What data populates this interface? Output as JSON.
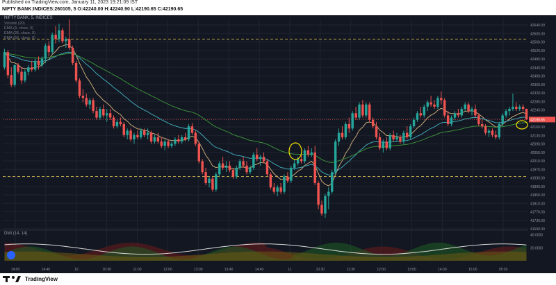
{
  "header": {
    "published": "Published on TradingView.com, January 11, 2023 19:21:09 IST",
    "symbol_line": "NIFTY BANK:INDICES:260105, 5 O:42240.00 H:42240.90 L:42190.65 C:42190.65"
  },
  "footer": {
    "brand": "TradingView"
  },
  "chart_data": [
    {
      "type": "candlestick",
      "title": "NIFTY BANK, 5, INDICES",
      "indicators": [
        "Volume (20)",
        "EMA (9, close, 0)",
        "EMA (26, close, 0)",
        "EMA (50, close, 0)"
      ],
      "y_axis_labels": [
        "42640.00",
        "42600.00",
        "42560.00",
        "42520.00",
        "42480.00",
        "42440.00",
        "42400.00",
        "42360.00",
        "42320.00",
        "42280.00",
        "42240.00",
        "42200.00",
        "42160.00",
        "42130.00",
        "42090.00",
        "42050.00",
        "42010.00",
        "41970.00",
        "41930.00",
        "41890.00",
        "41850.00",
        "41810.00",
        "41770.00",
        "41730.00",
        "41690.00"
      ],
      "ylim": [
        41690,
        42650
      ],
      "last_price": "42190.65",
      "x_axis_labels": [
        "14:00",
        "14:40",
        "10",
        "10:30",
        "11:00",
        "12:00",
        "13:00",
        "13:40",
        "14:40",
        "11",
        "10:30",
        "11:30",
        "12:00",
        "13:00",
        "14:00",
        "15:00",
        "05:30"
      ],
      "reference_levels": [
        42560,
        41930
      ],
      "candles": [
        {
          "o": 42430,
          "h": 42515,
          "l": 42420,
          "c": 42500
        },
        {
          "o": 42500,
          "h": 42510,
          "l": 42380,
          "c": 42395
        },
        {
          "o": 42395,
          "h": 42430,
          "l": 42340,
          "c": 42350
        },
        {
          "o": 42350,
          "h": 42445,
          "l": 42340,
          "c": 42440
        },
        {
          "o": 42440,
          "h": 42450,
          "l": 42400,
          "c": 42410
        },
        {
          "o": 42410,
          "h": 42430,
          "l": 42355,
          "c": 42370
        },
        {
          "o": 42370,
          "h": 42420,
          "l": 42360,
          "c": 42410
        },
        {
          "o": 42410,
          "h": 42440,
          "l": 42395,
          "c": 42430
        },
        {
          "o": 42430,
          "h": 42460,
          "l": 42410,
          "c": 42420
        },
        {
          "o": 42420,
          "h": 42470,
          "l": 42410,
          "c": 42460
        },
        {
          "o": 42460,
          "h": 42480,
          "l": 42420,
          "c": 42440
        },
        {
          "o": 42440,
          "h": 42480,
          "l": 42430,
          "c": 42470
        },
        {
          "o": 42470,
          "h": 42540,
          "l": 42450,
          "c": 42530
        },
        {
          "o": 42530,
          "h": 42550,
          "l": 42480,
          "c": 42500
        },
        {
          "o": 42500,
          "h": 42590,
          "l": 42490,
          "c": 42580
        },
        {
          "o": 42580,
          "h": 42620,
          "l": 42540,
          "c": 42560
        },
        {
          "o": 42560,
          "h": 42630,
          "l": 42545,
          "c": 42600
        },
        {
          "o": 42600,
          "h": 42610,
          "l": 42540,
          "c": 42550
        },
        {
          "o": 42550,
          "h": 42570,
          "l": 42520,
          "c": 42560
        },
        {
          "o": 42560,
          "h": 42650,
          "l": 42510,
          "c": 42520
        },
        {
          "o": 42520,
          "h": 42530,
          "l": 42440,
          "c": 42450
        },
        {
          "o": 42450,
          "h": 42460,
          "l": 42360,
          "c": 42370
        },
        {
          "o": 42370,
          "h": 42380,
          "l": 42290,
          "c": 42300
        },
        {
          "o": 42300,
          "h": 42330,
          "l": 42270,
          "c": 42290
        },
        {
          "o": 42290,
          "h": 42310,
          "l": 42250,
          "c": 42260
        },
        {
          "o": 42260,
          "h": 42290,
          "l": 42240,
          "c": 42280
        },
        {
          "o": 42280,
          "h": 42290,
          "l": 42220,
          "c": 42230
        },
        {
          "o": 42230,
          "h": 42250,
          "l": 42190,
          "c": 42200
        },
        {
          "o": 42200,
          "h": 42250,
          "l": 42190,
          "c": 42240
        },
        {
          "o": 42240,
          "h": 42260,
          "l": 42200,
          "c": 42210
        },
        {
          "o": 42210,
          "h": 42240,
          "l": 42180,
          "c": 42220
        },
        {
          "o": 42220,
          "h": 42240,
          "l": 42190,
          "c": 42200
        },
        {
          "o": 42200,
          "h": 42210,
          "l": 42150,
          "c": 42160
        },
        {
          "o": 42160,
          "h": 42190,
          "l": 42150,
          "c": 42180
        },
        {
          "o": 42180,
          "h": 42200,
          "l": 42160,
          "c": 42170
        },
        {
          "o": 42170,
          "h": 42180,
          "l": 42110,
          "c": 42120
        },
        {
          "o": 42120,
          "h": 42150,
          "l": 42100,
          "c": 42140
        },
        {
          "o": 42140,
          "h": 42150,
          "l": 42090,
          "c": 42100
        },
        {
          "o": 42100,
          "h": 42130,
          "l": 42080,
          "c": 42120
        },
        {
          "o": 42120,
          "h": 42140,
          "l": 42100,
          "c": 42110
        },
        {
          "o": 42110,
          "h": 42150,
          "l": 42100,
          "c": 42140
        },
        {
          "o": 42140,
          "h": 42150,
          "l": 42110,
          "c": 42120
        },
        {
          "o": 42120,
          "h": 42150,
          "l": 42100,
          "c": 42130
        },
        {
          "o": 42130,
          "h": 42140,
          "l": 42080,
          "c": 42090
        },
        {
          "o": 42090,
          "h": 42120,
          "l": 42080,
          "c": 42110
        },
        {
          "o": 42110,
          "h": 42130,
          "l": 42080,
          "c": 42090
        },
        {
          "o": 42090,
          "h": 42110,
          "l": 42060,
          "c": 42070
        },
        {
          "o": 42070,
          "h": 42100,
          "l": 42050,
          "c": 42090
        },
        {
          "o": 42090,
          "h": 42100,
          "l": 42060,
          "c": 42070
        },
        {
          "o": 42070,
          "h": 42090,
          "l": 42060,
          "c": 42080
        },
        {
          "o": 42080,
          "h": 42110,
          "l": 42070,
          "c": 42100
        },
        {
          "o": 42100,
          "h": 42120,
          "l": 42080,
          "c": 42090
        },
        {
          "o": 42090,
          "h": 42120,
          "l": 42080,
          "c": 42110
        },
        {
          "o": 42110,
          "h": 42130,
          "l": 42090,
          "c": 42100
        },
        {
          "o": 42100,
          "h": 42170,
          "l": 42090,
          "c": 42160
        },
        {
          "o": 42160,
          "h": 42175,
          "l": 42120,
          "c": 42130
        },
        {
          "o": 42130,
          "h": 42140,
          "l": 42070,
          "c": 42080
        },
        {
          "o": 42080,
          "h": 42090,
          "l": 41990,
          "c": 42000
        },
        {
          "o": 42000,
          "h": 42010,
          "l": 41940,
          "c": 41950
        },
        {
          "o": 41950,
          "h": 41970,
          "l": 41890,
          "c": 41900
        },
        {
          "o": 41900,
          "h": 41930,
          "l": 41880,
          "c": 41920
        },
        {
          "o": 41920,
          "h": 41930,
          "l": 41860,
          "c": 41870
        },
        {
          "o": 41870,
          "h": 41950,
          "l": 41860,
          "c": 41940
        },
        {
          "o": 41940,
          "h": 42000,
          "l": 41930,
          "c": 41990
        },
        {
          "o": 41990,
          "h": 42020,
          "l": 41960,
          "c": 41970
        },
        {
          "o": 41970,
          "h": 42000,
          "l": 41950,
          "c": 41980
        },
        {
          "o": 41980,
          "h": 42000,
          "l": 41950,
          "c": 41960
        },
        {
          "o": 41960,
          "h": 41970,
          "l": 41920,
          "c": 41930
        },
        {
          "o": 41930,
          "h": 41980,
          "l": 41920,
          "c": 41970
        },
        {
          "o": 41970,
          "h": 42010,
          "l": 41960,
          "c": 42000
        },
        {
          "o": 42000,
          "h": 42020,
          "l": 41970,
          "c": 41980
        },
        {
          "o": 41980,
          "h": 42000,
          "l": 41940,
          "c": 41950
        },
        {
          "o": 41950,
          "h": 41980,
          "l": 41940,
          "c": 41970
        },
        {
          "o": 41970,
          "h": 42040,
          "l": 41960,
          "c": 42030
        },
        {
          "o": 42030,
          "h": 42060,
          "l": 42000,
          "c": 42010
        },
        {
          "o": 42010,
          "h": 42030,
          "l": 41980,
          "c": 42020
        },
        {
          "o": 42020,
          "h": 42040,
          "l": 41990,
          "c": 42000
        },
        {
          "o": 42000,
          "h": 42010,
          "l": 41930,
          "c": 41940
        },
        {
          "o": 41940,
          "h": 41950,
          "l": 41870,
          "c": 41880
        },
        {
          "o": 41880,
          "h": 41900,
          "l": 41850,
          "c": 41860
        },
        {
          "o": 41860,
          "h": 41890,
          "l": 41840,
          "c": 41880
        },
        {
          "o": 41880,
          "h": 41900,
          "l": 41850,
          "c": 41860
        },
        {
          "o": 41860,
          "h": 41940,
          "l": 41850,
          "c": 41930
        },
        {
          "o": 41930,
          "h": 41950,
          "l": 41900,
          "c": 41910
        },
        {
          "o": 41910,
          "h": 41980,
          "l": 41900,
          "c": 41970
        },
        {
          "o": 41970,
          "h": 42010,
          "l": 41960,
          "c": 41990
        },
        {
          "o": 41990,
          "h": 42020,
          "l": 41980,
          "c": 42010
        },
        {
          "o": 42010,
          "h": 42030,
          "l": 41990,
          "c": 42000
        },
        {
          "o": 42000,
          "h": 42060,
          "l": 41990,
          "c": 42050
        },
        {
          "o": 42050,
          "h": 42070,
          "l": 42020,
          "c": 42030
        },
        {
          "o": 42030,
          "h": 42060,
          "l": 42020,
          "c": 42040
        },
        {
          "o": 42040,
          "h": 42070,
          "l": 41890,
          "c": 41900
        },
        {
          "o": 41900,
          "h": 41910,
          "l": 41780,
          "c": 41800
        },
        {
          "o": 41800,
          "h": 41820,
          "l": 41750,
          "c": 41760
        },
        {
          "o": 41760,
          "h": 41850,
          "l": 41740,
          "c": 41840
        },
        {
          "o": 41840,
          "h": 41880,
          "l": 41780,
          "c": 41860
        },
        {
          "o": 41860,
          "h": 41960,
          "l": 41850,
          "c": 41950
        },
        {
          "o": 41950,
          "h": 42100,
          "l": 41940,
          "c": 42090
        },
        {
          "o": 42090,
          "h": 42150,
          "l": 42070,
          "c": 42130
        },
        {
          "o": 42130,
          "h": 42160,
          "l": 42100,
          "c": 42110
        },
        {
          "o": 42110,
          "h": 42180,
          "l": 42100,
          "c": 42170
        },
        {
          "o": 42170,
          "h": 42200,
          "l": 42130,
          "c": 42150
        },
        {
          "o": 42150,
          "h": 42230,
          "l": 42140,
          "c": 42220
        },
        {
          "o": 42220,
          "h": 42250,
          "l": 42190,
          "c": 42200
        },
        {
          "o": 42200,
          "h": 42270,
          "l": 42190,
          "c": 42260
        },
        {
          "o": 42260,
          "h": 42280,
          "l": 42200,
          "c": 42210
        },
        {
          "o": 42210,
          "h": 42270,
          "l": 42200,
          "c": 42260
        },
        {
          "o": 42260,
          "h": 42270,
          "l": 42180,
          "c": 42190
        },
        {
          "o": 42190,
          "h": 42200,
          "l": 42150,
          "c": 42160
        },
        {
          "o": 42160,
          "h": 42180,
          "l": 42100,
          "c": 42110
        },
        {
          "o": 42110,
          "h": 42130,
          "l": 42050,
          "c": 42060
        },
        {
          "o": 42060,
          "h": 42100,
          "l": 42040,
          "c": 42090
        },
        {
          "o": 42090,
          "h": 42110,
          "l": 42050,
          "c": 42060
        },
        {
          "o": 42060,
          "h": 42130,
          "l": 42050,
          "c": 42120
        },
        {
          "o": 42120,
          "h": 42140,
          "l": 42090,
          "c": 42100
        },
        {
          "o": 42100,
          "h": 42130,
          "l": 42090,
          "c": 42110
        },
        {
          "o": 42110,
          "h": 42120,
          "l": 42080,
          "c": 42090
        },
        {
          "o": 42090,
          "h": 42140,
          "l": 42080,
          "c": 42130
        },
        {
          "o": 42130,
          "h": 42160,
          "l": 42100,
          "c": 42110
        },
        {
          "o": 42110,
          "h": 42170,
          "l": 42100,
          "c": 42160
        },
        {
          "o": 42160,
          "h": 42200,
          "l": 42150,
          "c": 42190
        },
        {
          "o": 42190,
          "h": 42230,
          "l": 42180,
          "c": 42220
        },
        {
          "o": 42220,
          "h": 42250,
          "l": 42200,
          "c": 42210
        },
        {
          "o": 42210,
          "h": 42260,
          "l": 42200,
          "c": 42250
        },
        {
          "o": 42250,
          "h": 42280,
          "l": 42230,
          "c": 42270
        },
        {
          "o": 42270,
          "h": 42300,
          "l": 42250,
          "c": 42260
        },
        {
          "o": 42260,
          "h": 42280,
          "l": 42240,
          "c": 42250
        },
        {
          "o": 42250,
          "h": 42300,
          "l": 42240,
          "c": 42290
        },
        {
          "o": 42290,
          "h": 42320,
          "l": 42260,
          "c": 42280
        },
        {
          "o": 42280,
          "h": 42290,
          "l": 42200,
          "c": 42210
        },
        {
          "o": 42210,
          "h": 42230,
          "l": 42160,
          "c": 42170
        },
        {
          "o": 42170,
          "h": 42210,
          "l": 42160,
          "c": 42200
        },
        {
          "o": 42200,
          "h": 42230,
          "l": 42190,
          "c": 42220
        },
        {
          "o": 42220,
          "h": 42240,
          "l": 42200,
          "c": 42210
        },
        {
          "o": 42210,
          "h": 42250,
          "l": 42200,
          "c": 42240
        },
        {
          "o": 42240,
          "h": 42270,
          "l": 42230,
          "c": 42260
        },
        {
          "o": 42260,
          "h": 42270,
          "l": 42220,
          "c": 42230
        },
        {
          "o": 42230,
          "h": 42250,
          "l": 42210,
          "c": 42240
        },
        {
          "o": 42240,
          "h": 42260,
          "l": 42200,
          "c": 42210
        },
        {
          "o": 42210,
          "h": 42220,
          "l": 42160,
          "c": 42170
        },
        {
          "o": 42170,
          "h": 42190,
          "l": 42150,
          "c": 42160
        },
        {
          "o": 42160,
          "h": 42170,
          "l": 42120,
          "c": 42130
        },
        {
          "o": 42130,
          "h": 42150,
          "l": 42110,
          "c": 42140
        },
        {
          "o": 42140,
          "h": 42150,
          "l": 42110,
          "c": 42120
        },
        {
          "o": 42120,
          "h": 42140,
          "l": 42100,
          "c": 42110
        },
        {
          "o": 42110,
          "h": 42180,
          "l": 42100,
          "c": 42170
        },
        {
          "o": 42170,
          "h": 42220,
          "l": 42160,
          "c": 42210
        },
        {
          "o": 42210,
          "h": 42240,
          "l": 42200,
          "c": 42230
        },
        {
          "o": 42230,
          "h": 42250,
          "l": 42210,
          "c": 42240
        },
        {
          "o": 42240,
          "h": 42310,
          "l": 42230,
          "c": 42250
        },
        {
          "o": 42250,
          "h": 42270,
          "l": 42230,
          "c": 42240
        },
        {
          "o": 42240,
          "h": 42260,
          "l": 42230,
          "c": 42250
        },
        {
          "o": 42250,
          "h": 42260,
          "l": 42230,
          "c": 42240
        },
        {
          "o": 42240,
          "h": 42241,
          "l": 42190,
          "c": 42191
        }
      ]
    },
    {
      "type": "area",
      "title": "DMI (14, 14)",
      "y_axis_labels": [
        "40.0000",
        "20.0000"
      ],
      "ylim": [
        0,
        45
      ]
    }
  ]
}
